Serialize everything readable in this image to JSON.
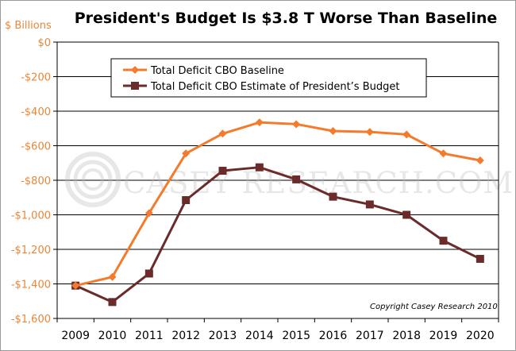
{
  "chart_data": {
    "type": "line",
    "title": "President's Budget Is $3.8 T Worse Than Baseline",
    "ylabel": "$ Billions",
    "ylim": [
      -1600,
      0
    ],
    "yticks": [
      {
        "value": 0,
        "label": "$0"
      },
      {
        "value": -200,
        "label": "-$200"
      },
      {
        "value": -400,
        "label": "-$400"
      },
      {
        "value": -600,
        "label": "-$600"
      },
      {
        "value": -800,
        "label": "-$800"
      },
      {
        "value": -1000,
        "label": "-$1,000"
      },
      {
        "value": -1200,
        "label": "-$1,200"
      },
      {
        "value": -1400,
        "label": "-$1,400"
      },
      {
        "value": -1600,
        "label": "-$1,600"
      }
    ],
    "categories": [
      "2009",
      "2010",
      "2011",
      "2012",
      "2013",
      "2014",
      "2015",
      "2016",
      "2017",
      "2018",
      "2019",
      "2020"
    ],
    "series": [
      {
        "name": "Total Deficit CBO Baseline",
        "color": "#f57b2c",
        "marker": "diamond",
        "values": [
          -1410,
          -1360,
          -990,
          -645,
          -530,
          -465,
          -475,
          -515,
          -520,
          -535,
          -645,
          -685
        ]
      },
      {
        "name": "Total Deficit CBO Estimate of President’s Budget",
        "color": "#6b2b2b",
        "marker": "square",
        "values": [
          -1410,
          -1505,
          -1340,
          -915,
          -745,
          -725,
          -795,
          -895,
          -940,
          -1000,
          -1150,
          -1255
        ]
      }
    ],
    "grid": true,
    "legend_position": "top-right",
    "watermark": "CASEY RESEARCH.COM"
  },
  "copyright": "Copyright Casey Research 2010"
}
